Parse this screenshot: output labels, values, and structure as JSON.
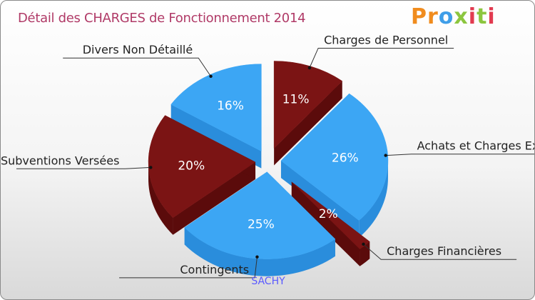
{
  "header": {
    "title": "Détail des CHARGES de Fonctionnement 2014",
    "logo_text": "Proxiti"
  },
  "chart_data": {
    "type": "pie",
    "title": "Détail des CHARGES de Fonctionnement 2014",
    "subtitle": "SACHY",
    "slices": [
      {
        "label": "Charges de Personnel",
        "value": 11,
        "display": "11%",
        "color": "#7b1414",
        "side": "#5b0b0b"
      },
      {
        "label": "Achats et Charges Externes",
        "display_label": "Achats et Charges Externe",
        "value": 26,
        "display": "26%",
        "color": "#3ca6f4",
        "side": "#2a8ddc"
      },
      {
        "label": "Charges Financières",
        "value": 2,
        "display": "2%",
        "color": "#7b1414",
        "side": "#5b0b0b"
      },
      {
        "label": "Contingents",
        "value": 25,
        "display": "25%",
        "color": "#3ca6f4",
        "side": "#2a8ddc"
      },
      {
        "label": "Subventions Versées",
        "value": 20,
        "display": "20%",
        "color": "#7b1414",
        "side": "#5b0b0b"
      },
      {
        "label": "Divers Non Détaillé",
        "value": 16,
        "display": "16%",
        "color": "#3ca6f4",
        "side": "#2a8ddc"
      }
    ]
  },
  "footer": {
    "city": "SACHY"
  }
}
